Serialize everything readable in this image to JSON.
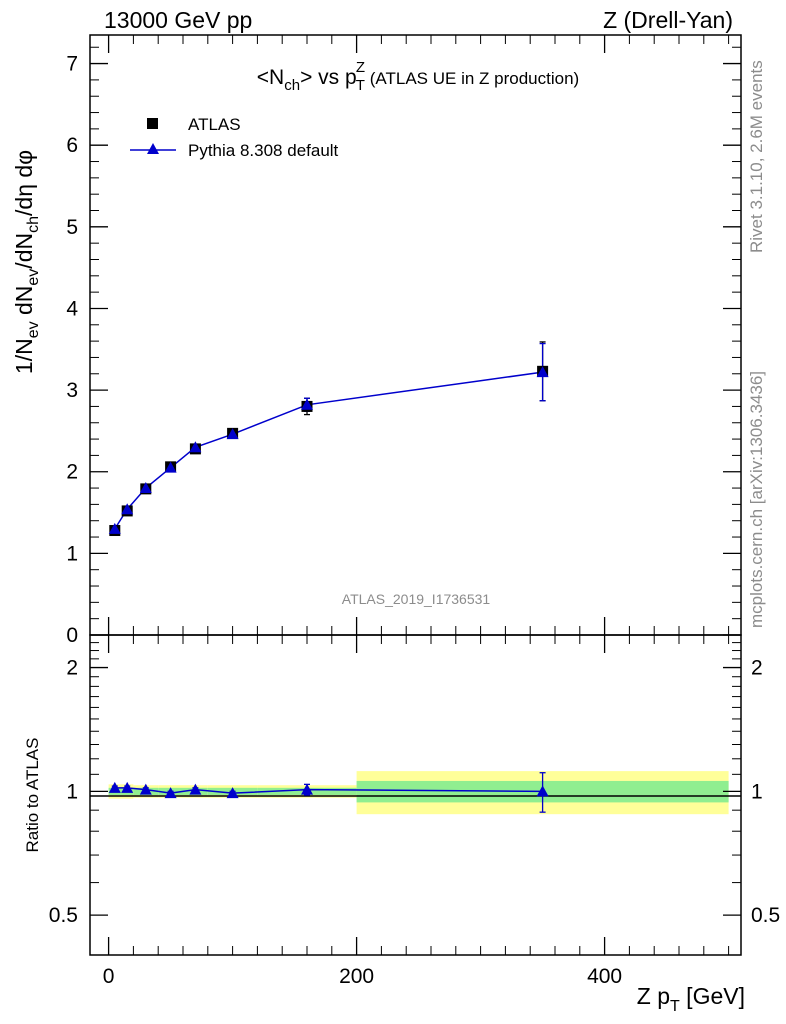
{
  "header": {
    "left": "13000 GeV pp",
    "right": "Z (Drell-Yan)"
  },
  "side_labels": {
    "rivet": "Rivet 3.1.10,  2.6M events",
    "mcplots": "mcplots.cern.ch [arXiv:1306.3436]"
  },
  "watermark": "ATLAS_2019_I1736531",
  "chart_data": [
    {
      "type": "scatter",
      "title": "<Nch> vs pTZ (ATLAS UE in Z production)",
      "xlabel": "Z pT [GeV]",
      "ylabel": "1/Nev dNev/dNch/dη dφ",
      "xlim": [
        -15,
        510
      ],
      "ylim": [
        0,
        7.35
      ],
      "x_ticks": [
        0,
        200,
        400
      ],
      "y_ticks": [
        0,
        1,
        2,
        3,
        4,
        5,
        6,
        7
      ],
      "legend_position": "top-left",
      "series": [
        {
          "name": "ATLAS",
          "marker": "square",
          "color": "#000000",
          "x": [
            5,
            15,
            30,
            50,
            70,
            100,
            160,
            350
          ],
          "y": [
            1.28,
            1.52,
            1.79,
            2.06,
            2.28,
            2.47,
            2.8,
            3.23
          ],
          "yerr": [
            0.02,
            0.03,
            0.03,
            0.04,
            0.05,
            0.05,
            0.1,
            0.36
          ]
        },
        {
          "name": "Pythia 8.308 default",
          "marker": "triangle",
          "color": "#0000cc",
          "x": [
            5,
            15,
            30,
            50,
            70,
            100,
            160,
            350
          ],
          "y": [
            1.3,
            1.54,
            1.8,
            2.05,
            2.3,
            2.46,
            2.82,
            3.22
          ],
          "yerr": [
            0.01,
            0.02,
            0.02,
            0.02,
            0.03,
            0.03,
            0.08,
            0.35
          ]
        }
      ]
    },
    {
      "type": "scatter",
      "title": "",
      "xlabel": "Z pT [GeV]",
      "ylabel": "Ratio to ATLAS",
      "xlim": [
        -15,
        510
      ],
      "ylim": [
        0.4,
        2.4
      ],
      "y_scale": "log",
      "y_ticks": [
        0.5,
        1,
        2
      ],
      "bands": {
        "edges": [
          0,
          10,
          20,
          40,
          60,
          80,
          120,
          200,
          500
        ],
        "stat": [
          0.02,
          0.02,
          0.02,
          0.02,
          0.02,
          0.02,
          0.02,
          0.06
        ],
        "total": [
          0.04,
          0.04,
          0.035,
          0.035,
          0.035,
          0.035,
          0.035,
          0.12
        ],
        "stat_color": "#90ee90",
        "total_color": "#ffff99"
      },
      "series": [
        {
          "name": "Pythia 8.308 default",
          "marker": "triangle",
          "color": "#0000cc",
          "x": [
            5,
            15,
            30,
            50,
            70,
            100,
            160,
            350
          ],
          "y": [
            1.02,
            1.02,
            1.01,
            0.99,
            1.01,
            0.99,
            1.01,
            1.0
          ],
          "yerr": [
            0.01,
            0.01,
            0.01,
            0.01,
            0.01,
            0.01,
            0.03,
            0.11
          ]
        }
      ]
    }
  ]
}
